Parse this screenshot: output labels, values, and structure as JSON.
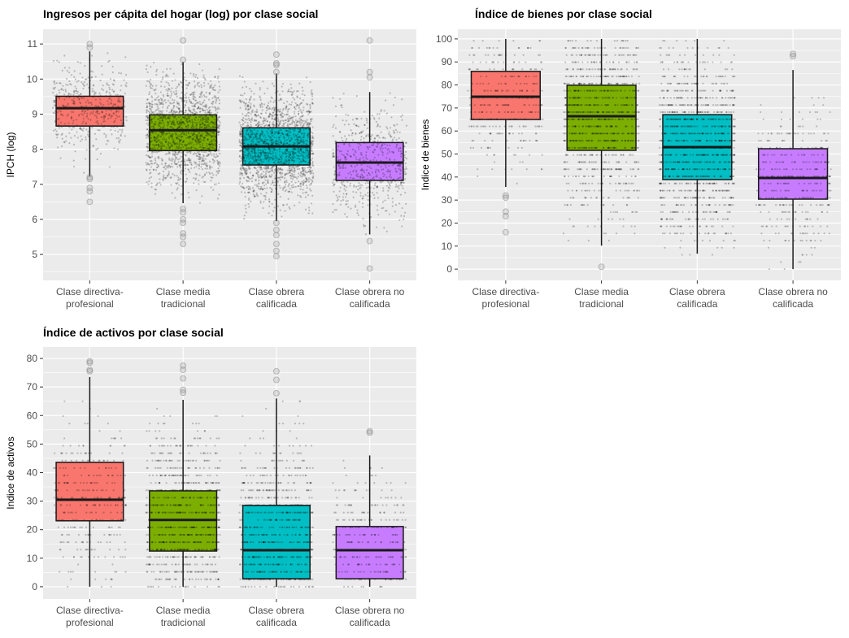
{
  "chart_data": [
    {
      "type": "boxplot",
      "title": "Ingresos per cápita del hogar (log) por clase social",
      "xlabel": "",
      "ylabel": "IPCH (log)",
      "ylim": [
        4.26,
        11.42
      ],
      "yticks": [
        5,
        6,
        7,
        8,
        9,
        10,
        11
      ],
      "grid": true,
      "categories": [
        "Clase directiva-\nprofesional",
        "Clase media\ntradicional",
        "Clase obrera\ncalificada",
        "Clase obrera no\ncalificada"
      ],
      "colors": [
        "#F8766D",
        "#7CAE00",
        "#00BFC4",
        "#C77CFF"
      ],
      "boxes": [
        {
          "whisker_low": 7.22,
          "q1": 8.66,
          "median": 9.17,
          "q3": 9.51,
          "whisker_high": 10.79,
          "outliers": [
            11.0,
            10.9,
            7.2,
            7.15,
            6.9,
            6.8,
            6.5
          ]
        },
        {
          "whisker_low": 6.46,
          "q1": 7.96,
          "median": 8.54,
          "q3": 8.98,
          "whisker_high": 10.49,
          "outliers": [
            11.1,
            10.55,
            6.3,
            6.2,
            6.0,
            5.9,
            5.6,
            5.5,
            5.3
          ]
        },
        {
          "whisker_low": 5.95,
          "q1": 7.55,
          "median": 8.08,
          "q3": 8.61,
          "whisker_high": 10.16,
          "outliers": [
            10.7,
            10.45,
            10.4,
            10.2,
            5.9,
            5.7,
            5.55,
            5.3,
            5.1,
            4.95
          ]
        },
        {
          "whisker_low": 5.57,
          "q1": 7.11,
          "median": 7.62,
          "q3": 8.19,
          "whisker_high": 9.63,
          "outliers": [
            11.1,
            10.2,
            10.05,
            5.38,
            4.6
          ]
        }
      ]
    },
    {
      "type": "boxplot",
      "title": "Índice de bienes por clase social",
      "xlabel": "",
      "ylabel": "Indice de bienes",
      "ylim": [
        -4.9,
        104.2
      ],
      "yticks": [
        0,
        10,
        20,
        30,
        40,
        50,
        60,
        70,
        80,
        90,
        100
      ],
      "grid": true,
      "categories": [
        "Clase directiva-\nprofesional",
        "Clase media\ntradicional",
        "Clase obrera\ncalificada",
        "Clase obrera no\ncalificada"
      ],
      "colors": [
        "#F8766D",
        "#7CAE00",
        "#00BFC4",
        "#C77CFF"
      ],
      "boxes": [
        {
          "whisker_low": 35.7,
          "q1": 65.0,
          "median": 74.9,
          "q3": 85.9,
          "whisker_high": 100,
          "outliers": [
            32,
            31,
            25,
            23,
            16
          ]
        },
        {
          "whisker_low": 10.2,
          "q1": 51.6,
          "median": 66.4,
          "q3": 79.9,
          "whisker_high": 100,
          "outliers": [
            1
          ]
        },
        {
          "whisker_low": 6.7,
          "q1": 38.9,
          "median": 53.0,
          "q3": 67.1,
          "whisker_high": 100,
          "outliers": []
        },
        {
          "whisker_low": 0,
          "q1": 30.4,
          "median": 39.6,
          "q3": 52.3,
          "whisker_high": 86.5,
          "outliers": [
            93.5,
            92.5
          ]
        }
      ]
    },
    {
      "type": "boxplot",
      "title": "Índice de activos por clase social",
      "xlabel": "",
      "ylabel": "Indice de activos",
      "ylim": [
        -4.3,
        84
      ],
      "yticks": [
        0,
        10,
        20,
        30,
        40,
        50,
        60,
        70,
        80
      ],
      "grid": true,
      "categories": [
        "Clase directiva-\nprofesional",
        "Clase media\ntradicional",
        "Clase obrera\ncalificada",
        "Clase obrera no\ncalificada"
      ],
      "colors": [
        "#F8766D",
        "#7CAE00",
        "#00BFC4",
        "#C77CFF"
      ],
      "boxes": [
        {
          "whisker_low": 0,
          "q1": 23.1,
          "median": 30.5,
          "q3": 43.6,
          "whisker_high": 73.5,
          "outliers": [
            79,
            78.5,
            76,
            75.5
          ]
        },
        {
          "whisker_low": 0,
          "q1": 12.5,
          "median": 23.4,
          "q3": 33.6,
          "whisker_high": 65.5,
          "outliers": [
            77.5,
            76,
            73,
            69,
            68
          ]
        },
        {
          "whisker_low": 0,
          "q1": 2.8,
          "median": 12.8,
          "q3": 28.5,
          "whisker_high": 66,
          "outliers": [
            75.5,
            72.5,
            67.8
          ]
        },
        {
          "whisker_low": 0,
          "q1": 2.8,
          "median": 12.8,
          "q3": 21.1,
          "whisker_high": 46,
          "outliers": [
            54.5,
            54
          ]
        }
      ]
    }
  ]
}
